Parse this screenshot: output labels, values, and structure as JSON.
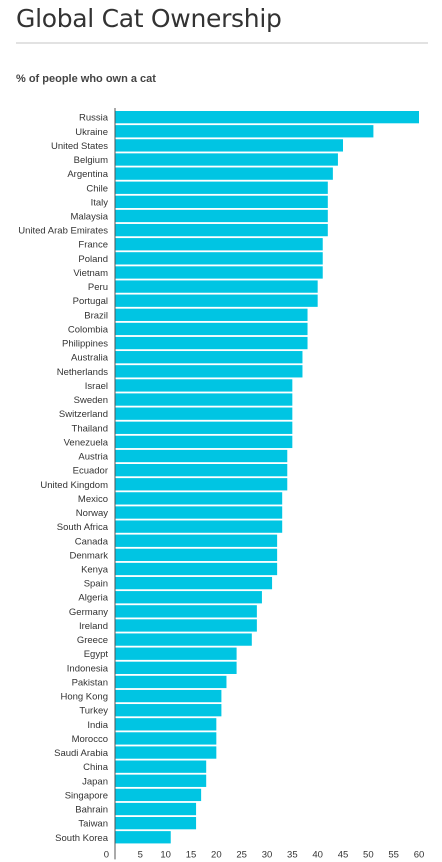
{
  "page": {
    "title": "Global Cat Ownership",
    "subtitle": "% of people who own a cat"
  },
  "chart_data": {
    "type": "bar",
    "orientation": "horizontal",
    "categories": [
      "Russia",
      "Ukraine",
      "United States",
      "Belgium",
      "Argentina",
      "Chile",
      "Italy",
      "Malaysia",
      "United Arab Emirates",
      "France",
      "Poland",
      "Vietnam",
      "Peru",
      "Portugal",
      "Brazil",
      "Colombia",
      "Philippines",
      "Australia",
      "Netherlands",
      "Israel",
      "Sweden",
      "Switzerland",
      "Thailand",
      "Venezuela",
      "Austria",
      "Ecuador",
      "United Kingdom",
      "Mexico",
      "Norway",
      "South Africa",
      "Canada",
      "Denmark",
      "Kenya",
      "Spain",
      "Algeria",
      "Germany",
      "Ireland",
      "Greece",
      "Egypt",
      "Indonesia",
      "Pakistan",
      "Hong Kong",
      "Turkey",
      "India",
      "Morocco",
      "Saudi Arabia",
      "China",
      "Japan",
      "Singapore",
      "Bahrain",
      "Taiwan",
      "South Korea"
    ],
    "values": [
      60,
      51,
      45,
      44,
      43,
      42,
      42,
      42,
      42,
      41,
      41,
      41,
      40,
      40,
      38,
      38,
      38,
      37,
      37,
      35,
      35,
      35,
      35,
      35,
      34,
      34,
      34,
      33,
      33,
      33,
      32,
      32,
      32,
      31,
      29,
      28,
      28,
      27,
      24,
      24,
      22,
      21,
      21,
      20,
      20,
      20,
      18,
      18,
      17,
      16,
      16,
      11
    ],
    "title": "Global Cat Ownership",
    "subtitle": "% of people who own a cat",
    "xlabel": "",
    "ylabel": "",
    "xlim": [
      0,
      60
    ],
    "xticks": [
      0,
      5,
      10,
      15,
      20,
      25,
      30,
      35,
      40,
      45,
      50,
      55,
      60
    ],
    "grid": false,
    "legend": "none",
    "bar_color": "#00c5e3",
    "axis_color": "#555555"
  }
}
